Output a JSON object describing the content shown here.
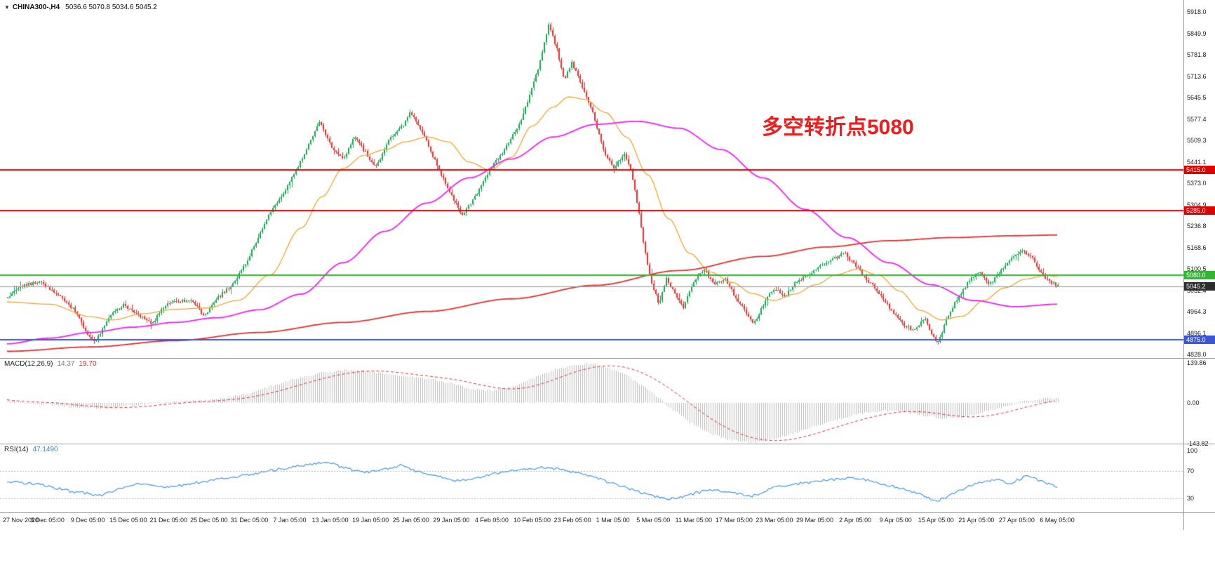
{
  "header": {
    "expander_icon": "▼",
    "symbol": "CHINA300-,H4",
    "ohlc": "5036.6 5070.8 5034.6 5045.2"
  },
  "annotation": {
    "text": "多空转折点5080",
    "color": "#f21b1b"
  },
  "price_axis": {
    "max": 5918.0,
    "min": 4828.0,
    "ticks": [
      "5918.0",
      "5849.9",
      "5781.8",
      "5713.6",
      "5645.5",
      "5577.4",
      "5509.3",
      "5441.1",
      "5373.0",
      "5304.9",
      "5236.8",
      "5168.6",
      "5100.5",
      "5032.4",
      "4964.3",
      "4896.1",
      "4828.0"
    ],
    "tags": [
      {
        "label": "5415.0",
        "price": 5415.0,
        "color": "#e00000"
      },
      {
        "label": "5285.0",
        "price": 5285.0,
        "color": "#e00000"
      },
      {
        "label": "5080.0",
        "price": 5080.0,
        "color": "#2db82d"
      },
      {
        "label": "5045.2",
        "price": 5045.2,
        "color": "#2d2d2d"
      },
      {
        "label": "4875.0",
        "price": 4875.0,
        "color": "#3a56d4"
      }
    ]
  },
  "hlines": [
    {
      "price": 5415.0,
      "color": "#f00000",
      "width": 2
    },
    {
      "price": 5285.0,
      "color": "#f00000",
      "width": 2
    },
    {
      "price": 5080.0,
      "color": "#2db82d",
      "width": 2
    },
    {
      "price": 4875.0,
      "color": "#3a56d4",
      "width": 2
    }
  ],
  "current_price": {
    "value": 5045.2,
    "line_color": "#9a9a9a"
  },
  "chart_data": {
    "type": "candlestick",
    "instrument": "CHINA300-",
    "timeframe": "H4",
    "ylim": [
      4828.0,
      5918.0
    ],
    "x_labels": [
      "27 Nov 2020",
      "3 Dec 05:00",
      "9 Dec 05:00",
      "15 Dec 05:00",
      "21 Dec 05:00",
      "25 Dec 05:00",
      "31 Dec 05:00",
      "7 Jan 05:00",
      "13 Jan 05:00",
      "19 Jan 05:00",
      "25 Jan 05:00",
      "29 Jan 05:00",
      "4 Feb 05:00",
      "10 Feb 05:00",
      "23 Feb 05:00",
      "1 Mar 05:00",
      "5 Mar 05:00",
      "11 Mar 05:00",
      "17 Mar 05:00",
      "23 Mar 05:00",
      "29 Mar 05:00",
      "2 Apr 05:00",
      "9 Apr 05:00",
      "15 Apr 05:00",
      "21 Apr 05:00",
      "27 Apr 05:00",
      "6 May 05:00"
    ],
    "price": {
      "bars": 500,
      "up_color": "#12a852",
      "down_color": "#f02b2b",
      "close_path": [
        [
          0,
          5010
        ],
        [
          0.013,
          5045
        ],
        [
          0.03,
          5060
        ],
        [
          0.047,
          5020
        ],
        [
          0.063,
          4970
        ],
        [
          0.077,
          4890
        ],
        [
          0.083,
          4865
        ],
        [
          0.097,
          4950
        ],
        [
          0.11,
          4985
        ],
        [
          0.123,
          4960
        ],
        [
          0.137,
          4925
        ],
        [
          0.15,
          4985
        ],
        [
          0.163,
          5000
        ],
        [
          0.177,
          4995
        ],
        [
          0.187,
          4950
        ],
        [
          0.2,
          5010
        ],
        [
          0.213,
          5045
        ],
        [
          0.227,
          5120
        ],
        [
          0.24,
          5210
        ],
        [
          0.25,
          5280
        ],
        [
          0.263,
          5340
        ],
        [
          0.277,
          5430
        ],
        [
          0.287,
          5500
        ],
        [
          0.297,
          5570
        ],
        [
          0.31,
          5480
        ],
        [
          0.32,
          5450
        ],
        [
          0.33,
          5520
        ],
        [
          0.343,
          5460
        ],
        [
          0.35,
          5420
        ],
        [
          0.363,
          5510
        ],
        [
          0.377,
          5560
        ],
        [
          0.383,
          5600
        ],
        [
          0.397,
          5520
        ],
        [
          0.41,
          5420
        ],
        [
          0.423,
          5330
        ],
        [
          0.433,
          5270
        ],
        [
          0.447,
          5340
        ],
        [
          0.46,
          5420
        ],
        [
          0.473,
          5480
        ],
        [
          0.487,
          5560
        ],
        [
          0.497,
          5650
        ],
        [
          0.507,
          5760
        ],
        [
          0.515,
          5878
        ],
        [
          0.523,
          5800
        ],
        [
          0.53,
          5700
        ],
        [
          0.537,
          5760
        ],
        [
          0.547,
          5680
        ],
        [
          0.557,
          5600
        ],
        [
          0.567,
          5480
        ],
        [
          0.577,
          5420
        ],
        [
          0.587,
          5470
        ],
        [
          0.593,
          5420
        ],
        [
          0.6,
          5300
        ],
        [
          0.607,
          5150
        ],
        [
          0.613,
          5060
        ],
        [
          0.62,
          4990
        ],
        [
          0.627,
          5070
        ],
        [
          0.637,
          5010
        ],
        [
          0.643,
          4975
        ],
        [
          0.653,
          5060
        ],
        [
          0.663,
          5100
        ],
        [
          0.673,
          5050
        ],
        [
          0.683,
          5070
        ],
        [
          0.693,
          5010
        ],
        [
          0.703,
          4960
        ],
        [
          0.71,
          4925
        ],
        [
          0.72,
          4990
        ],
        [
          0.73,
          5040
        ],
        [
          0.74,
          5010
        ],
        [
          0.75,
          5060
        ],
        [
          0.757,
          5070
        ],
        [
          0.77,
          5100
        ],
        [
          0.783,
          5130
        ],
        [
          0.797,
          5150
        ],
        [
          0.81,
          5100
        ],
        [
          0.82,
          5060
        ],
        [
          0.833,
          5010
        ],
        [
          0.843,
          4960
        ],
        [
          0.853,
          4920
        ],
        [
          0.863,
          4905
        ],
        [
          0.873,
          4945
        ],
        [
          0.885,
          4858
        ],
        [
          0.895,
          4950
        ],
        [
          0.905,
          5010
        ],
        [
          0.915,
          5060
        ],
        [
          0.925,
          5090
        ],
        [
          0.935,
          5050
        ],
        [
          0.945,
          5090
        ],
        [
          0.955,
          5130
        ],
        [
          0.965,
          5160
        ],
        [
          0.975,
          5140
        ],
        [
          0.985,
          5080
        ],
        [
          0.995,
          5055
        ],
        [
          1,
          5045.2
        ]
      ]
    },
    "moving_averages": [
      {
        "name": "ma-fast",
        "color": "#efa531",
        "width": 1.3,
        "points": [
          [
            0,
            4995
          ],
          [
            0.04,
            4988
          ],
          [
            0.08,
            4948
          ],
          [
            0.1,
            4938
          ],
          [
            0.13,
            4958
          ],
          [
            0.16,
            4972
          ],
          [
            0.19,
            4976
          ],
          [
            0.22,
            5000
          ],
          [
            0.25,
            5080
          ],
          [
            0.28,
            5230
          ],
          [
            0.3,
            5330
          ],
          [
            0.32,
            5420
          ],
          [
            0.34,
            5462
          ],
          [
            0.36,
            5480
          ],
          [
            0.38,
            5505
          ],
          [
            0.4,
            5520
          ],
          [
            0.42,
            5505
          ],
          [
            0.44,
            5440
          ],
          [
            0.46,
            5415
          ],
          [
            0.48,
            5455
          ],
          [
            0.5,
            5555
          ],
          [
            0.52,
            5615
          ],
          [
            0.535,
            5648
          ],
          [
            0.55,
            5640
          ],
          [
            0.57,
            5598
          ],
          [
            0.59,
            5520
          ],
          [
            0.61,
            5400
          ],
          [
            0.63,
            5260
          ],
          [
            0.65,
            5150
          ],
          [
            0.67,
            5090
          ],
          [
            0.69,
            5058
          ],
          [
            0.71,
            5022
          ],
          [
            0.73,
            5000
          ],
          [
            0.75,
            5020
          ],
          [
            0.77,
            5050
          ],
          [
            0.79,
            5082
          ],
          [
            0.81,
            5100
          ],
          [
            0.83,
            5080
          ],
          [
            0.85,
            5030
          ],
          [
            0.87,
            4968
          ],
          [
            0.89,
            4938
          ],
          [
            0.91,
            4950
          ],
          [
            0.93,
            5000
          ],
          [
            0.95,
            5040
          ],
          [
            0.97,
            5068
          ],
          [
            0.99,
            5080
          ],
          [
            1,
            5075
          ]
        ]
      },
      {
        "name": "ma-mid",
        "color": "#f020f0",
        "width": 1.8,
        "points": [
          [
            0,
            4862
          ],
          [
            0.04,
            4880
          ],
          [
            0.08,
            4898
          ],
          [
            0.12,
            4915
          ],
          [
            0.16,
            4930
          ],
          [
            0.2,
            4945
          ],
          [
            0.24,
            4970
          ],
          [
            0.28,
            5020
          ],
          [
            0.32,
            5120
          ],
          [
            0.36,
            5220
          ],
          [
            0.4,
            5310
          ],
          [
            0.44,
            5390
          ],
          [
            0.48,
            5450
          ],
          [
            0.52,
            5520
          ],
          [
            0.56,
            5560
          ],
          [
            0.6,
            5570
          ],
          [
            0.64,
            5548
          ],
          [
            0.68,
            5480
          ],
          [
            0.72,
            5390
          ],
          [
            0.76,
            5290
          ],
          [
            0.8,
            5200
          ],
          [
            0.84,
            5120
          ],
          [
            0.88,
            5050
          ],
          [
            0.92,
            5000
          ],
          [
            0.96,
            4980
          ],
          [
            1,
            4988
          ]
        ]
      },
      {
        "name": "ma-slow",
        "color": "#e53030",
        "width": 1.8,
        "points": [
          [
            0,
            4838
          ],
          [
            0.08,
            4852
          ],
          [
            0.16,
            4872
          ],
          [
            0.24,
            4898
          ],
          [
            0.32,
            4930
          ],
          [
            0.4,
            4965
          ],
          [
            0.48,
            5005
          ],
          [
            0.56,
            5048
          ],
          [
            0.64,
            5095
          ],
          [
            0.72,
            5140
          ],
          [
            0.78,
            5170
          ],
          [
            0.84,
            5190
          ],
          [
            0.9,
            5200
          ],
          [
            0.96,
            5206
          ],
          [
            1,
            5208
          ]
        ]
      }
    ],
    "macd": {
      "label": "MACD(12,26,9)",
      "value": "14.37",
      "signal": "19.70",
      "axis": [
        139.86,
        0,
        -143.82
      ],
      "hist_color": "#bdbdbd",
      "signal_color": "#e03030",
      "points": [
        [
          0,
          8
        ],
        [
          0.03,
          -2
        ],
        [
          0.06,
          -15
        ],
        [
          0.09,
          -20
        ],
        [
          0.12,
          -8
        ],
        [
          0.15,
          2
        ],
        [
          0.18,
          6
        ],
        [
          0.21,
          18
        ],
        [
          0.24,
          45
        ],
        [
          0.27,
          80
        ],
        [
          0.3,
          105
        ],
        [
          0.32,
          115
        ],
        [
          0.34,
          112
        ],
        [
          0.36,
          100
        ],
        [
          0.38,
          92
        ],
        [
          0.4,
          85
        ],
        [
          0.42,
          70
        ],
        [
          0.44,
          48
        ],
        [
          0.46,
          42
        ],
        [
          0.48,
          55
        ],
        [
          0.5,
          85
        ],
        [
          0.52,
          115
        ],
        [
          0.54,
          132
        ],
        [
          0.555,
          138
        ],
        [
          0.57,
          125
        ],
        [
          0.59,
          95
        ],
        [
          0.61,
          45
        ],
        [
          0.63,
          -15
        ],
        [
          0.65,
          -70
        ],
        [
          0.67,
          -110
        ],
        [
          0.69,
          -132
        ],
        [
          0.71,
          -140
        ],
        [
          0.73,
          -128
        ],
        [
          0.75,
          -105
        ],
        [
          0.77,
          -82
        ],
        [
          0.79,
          -58
        ],
        [
          0.81,
          -38
        ],
        [
          0.83,
          -28
        ],
        [
          0.85,
          -30
        ],
        [
          0.87,
          -42
        ],
        [
          0.89,
          -55
        ],
        [
          0.91,
          -50
        ],
        [
          0.93,
          -32
        ],
        [
          0.95,
          -12
        ],
        [
          0.97,
          6
        ],
        [
          0.99,
          16
        ],
        [
          1,
          14.37
        ]
      ]
    },
    "rsi": {
      "label": "RSI(14)",
      "value": "47.1490",
      "axis": [
        100,
        70,
        30
      ],
      "levels": [
        70,
        30
      ],
      "color": "#4596e0",
      "points": [
        [
          0,
          55
        ],
        [
          0.03,
          50
        ],
        [
          0.06,
          40
        ],
        [
          0.09,
          34
        ],
        [
          0.11,
          45
        ],
        [
          0.13,
          52
        ],
        [
          0.15,
          45
        ],
        [
          0.17,
          50
        ],
        [
          0.19,
          55
        ],
        [
          0.22,
          62
        ],
        [
          0.25,
          70
        ],
        [
          0.27,
          76
        ],
        [
          0.29,
          80
        ],
        [
          0.305,
          84
        ],
        [
          0.32,
          75
        ],
        [
          0.34,
          68
        ],
        [
          0.36,
          72
        ],
        [
          0.375,
          78
        ],
        [
          0.39,
          70
        ],
        [
          0.41,
          62
        ],
        [
          0.43,
          55
        ],
        [
          0.45,
          60
        ],
        [
          0.47,
          68
        ],
        [
          0.49,
          72
        ],
        [
          0.51,
          76
        ],
        [
          0.53,
          72
        ],
        [
          0.55,
          65
        ],
        [
          0.57,
          55
        ],
        [
          0.59,
          45
        ],
        [
          0.61,
          35
        ],
        [
          0.63,
          28
        ],
        [
          0.65,
          35
        ],
        [
          0.67,
          42
        ],
        [
          0.69,
          38
        ],
        [
          0.71,
          33
        ],
        [
          0.73,
          45
        ],
        [
          0.75,
          50
        ],
        [
          0.77,
          55
        ],
        [
          0.79,
          58
        ],
        [
          0.81,
          60
        ],
        [
          0.83,
          52
        ],
        [
          0.85,
          45
        ],
        [
          0.87,
          35
        ],
        [
          0.885,
          25
        ],
        [
          0.9,
          35
        ],
        [
          0.92,
          50
        ],
        [
          0.94,
          58
        ],
        [
          0.955,
          52
        ],
        [
          0.97,
          62
        ],
        [
          0.985,
          55
        ],
        [
          1,
          47.1
        ]
      ]
    }
  }
}
